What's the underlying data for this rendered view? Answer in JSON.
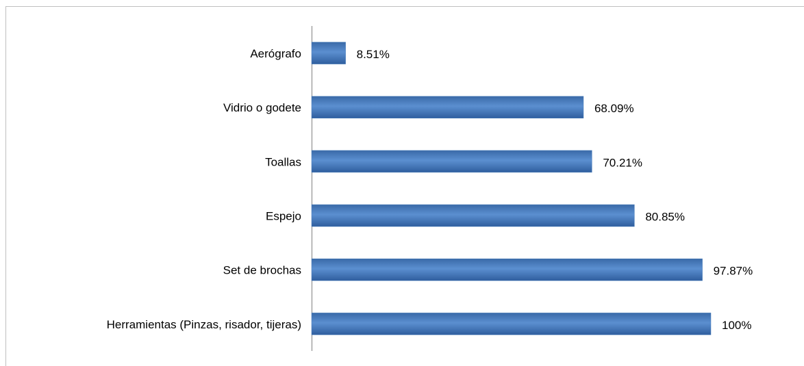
{
  "chart_data": {
    "type": "hbar",
    "categories": [
      "Aerógrafo",
      "Vidrio o godete",
      "Toallas",
      "Espejo",
      "Set de brochas",
      "Herramientas (Pinzas, risador, tijeras)"
    ],
    "values": [
      8.51,
      68.09,
      70.21,
      80.85,
      97.87,
      100
    ],
    "value_labels": [
      "8.51%",
      "68.09%",
      "70.21%",
      "80.85%",
      "97.87%",
      "100%"
    ],
    "color": "#4a7ebb",
    "xlim": [
      0,
      100
    ]
  }
}
